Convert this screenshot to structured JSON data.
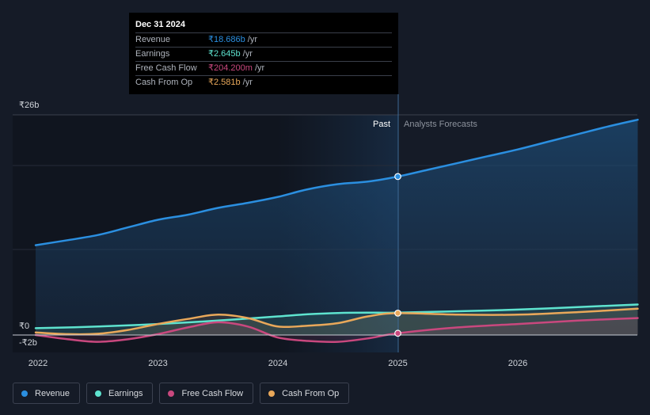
{
  "chart_data": {
    "type": "line",
    "y_tick_labels": [
      "₹26b",
      "₹0",
      "-₹2b"
    ],
    "ylim": [
      -2,
      26
    ],
    "x_tick_labels": [
      "2022",
      "2023",
      "2024",
      "2025",
      "2026"
    ],
    "period_labels": {
      "past": "Past",
      "forecast": "Analysts Forecasts"
    },
    "divider_x": 2025.0,
    "series": [
      {
        "name": "Revenue",
        "color": "#2b8fe0",
        "x": [
          2021.98,
          2022.25,
          2022.5,
          2022.75,
          2023.0,
          2023.25,
          2023.5,
          2023.75,
          2024.0,
          2024.25,
          2024.5,
          2024.75,
          2025.0,
          2025.25,
          2025.5,
          2025.75,
          2026.0,
          2026.25,
          2026.5,
          2026.75,
          2027.0
        ],
        "values": [
          10.6,
          11.2,
          11.8,
          12.7,
          13.6,
          14.2,
          15.0,
          15.6,
          16.3,
          17.2,
          17.8,
          18.1,
          18.7,
          19.5,
          20.3,
          21.1,
          21.9,
          22.8,
          23.7,
          24.6,
          25.4
        ]
      },
      {
        "name": "Earnings",
        "color": "#5ee3cf",
        "x": [
          2021.98,
          2022.5,
          2023.0,
          2023.5,
          2024.0,
          2024.25,
          2024.5,
          2024.75,
          2025.0,
          2025.5,
          2026.0,
          2026.5,
          2027.0
        ],
        "values": [
          0.8,
          1.0,
          1.3,
          1.7,
          2.2,
          2.45,
          2.6,
          2.64,
          2.645,
          2.8,
          3.0,
          3.3,
          3.6
        ]
      },
      {
        "name": "Free Cash Flow",
        "color": "#c9487e",
        "x": [
          2021.98,
          2022.25,
          2022.5,
          2022.75,
          2023.0,
          2023.25,
          2023.5,
          2023.75,
          2024.0,
          2024.25,
          2024.5,
          2024.75,
          2025.0,
          2025.5,
          2026.0,
          2026.5,
          2027.0
        ],
        "values": [
          0.0,
          -0.5,
          -0.8,
          -0.5,
          0.1,
          0.9,
          1.5,
          1.0,
          -0.3,
          -0.7,
          -0.8,
          -0.4,
          0.2042,
          0.9,
          1.3,
          1.7,
          2.0
        ]
      },
      {
        "name": "Cash From Op",
        "color": "#e9a85a",
        "x": [
          2021.98,
          2022.25,
          2022.5,
          2022.75,
          2023.0,
          2023.25,
          2023.5,
          2023.75,
          2024.0,
          2024.25,
          2024.5,
          2024.75,
          2025.0,
          2025.5,
          2026.0,
          2026.5,
          2027.0
        ],
        "values": [
          0.3,
          0.1,
          0.15,
          0.6,
          1.3,
          1.9,
          2.4,
          2.0,
          1.0,
          1.1,
          1.4,
          2.2,
          2.581,
          2.4,
          2.4,
          2.7,
          3.1
        ]
      }
    ],
    "tooltip": {
      "date": "Dec 31 2024",
      "unit": "/yr",
      "rows": [
        {
          "label": "Revenue",
          "value": "₹18.686b",
          "color": "#2b8fe0"
        },
        {
          "label": "Earnings",
          "value": "₹2.645b",
          "color": "#5ee3cf"
        },
        {
          "label": "Free Cash Flow",
          "value": "₹204.200m",
          "color": "#c9487e"
        },
        {
          "label": "Cash From Op",
          "value": "₹2.581b",
          "color": "#e9a85a"
        }
      ]
    }
  },
  "legend": [
    {
      "label": "Revenue",
      "color": "#2b8fe0"
    },
    {
      "label": "Earnings",
      "color": "#5ee3cf"
    },
    {
      "label": "Free Cash Flow",
      "color": "#c9487e"
    },
    {
      "label": "Cash From Op",
      "color": "#e9a85a"
    }
  ]
}
